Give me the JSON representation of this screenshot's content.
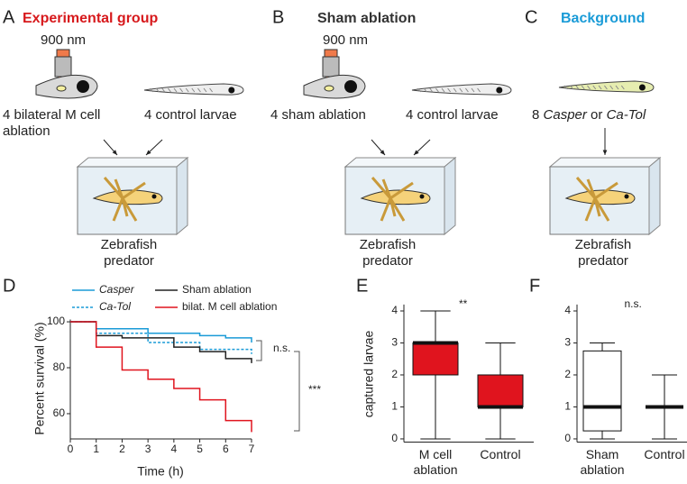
{
  "panels": {
    "A": {
      "label": "A",
      "title": "Experimental group",
      "wavelength": "900 nm",
      "group1": "4 bilateral M cell ablation",
      "group2": "4 control larvae",
      "tank": "Zebrafish predator"
    },
    "B": {
      "label": "B",
      "title": "Sham ablation",
      "wavelength": "900 nm",
      "group1": "4 sham ablation",
      "group2": "4 control larvae",
      "tank": "Zebrafish predator"
    },
    "C": {
      "label": "C",
      "title": "Background",
      "group_count": "8",
      "group_name1": "Casper",
      "group_or": "or",
      "group_name2": "Ca-Tol",
      "tank": "Zebrafish predator"
    }
  },
  "chart_data": [
    {
      "type": "step-line",
      "panel_label": "D",
      "ylabel": "Percent survival (%)",
      "xlabel": "Time (h)",
      "x": [
        0,
        1,
        2,
        3,
        4,
        5,
        6,
        7
      ],
      "series": [
        {
          "name": "Casper",
          "color": "#1a9bd7",
          "style": "solid",
          "values": [
            100,
            97,
            97,
            95,
            95,
            94,
            93,
            91
          ]
        },
        {
          "name": "Ca-Tol",
          "color": "#1a9bd7",
          "style": "dotted",
          "values": [
            100,
            95,
            95,
            91,
            91,
            88,
            88,
            86
          ]
        },
        {
          "name": "Sham ablation",
          "color": "#222222",
          "style": "solid",
          "values": [
            100,
            94,
            93,
            93,
            89,
            87,
            84,
            82
          ]
        },
        {
          "name": "bilat. M cell ablation",
          "color": "#e0141e",
          "style": "solid",
          "values": [
            100,
            89,
            79,
            75,
            71,
            66,
            57,
            52
          ]
        }
      ],
      "xlim": [
        0,
        7
      ],
      "xticks": [
        0,
        1,
        2,
        3,
        4,
        5,
        6,
        7
      ],
      "ylim": [
        49,
        101
      ],
      "yticks": [
        60,
        80,
        100
      ],
      "annotations": [
        "n.s.",
        "***"
      ]
    },
    {
      "type": "box",
      "panel_label": "E",
      "ylabel": "captured larvae",
      "categories": [
        "M cell ablation",
        "Control"
      ],
      "min": [
        0,
        0
      ],
      "q1": [
        2,
        1
      ],
      "median": [
        3,
        1
      ],
      "q3": [
        3,
        2
      ],
      "max": [
        4,
        3
      ],
      "color": "#e0141e",
      "ylim": [
        -0.1,
        4.2
      ],
      "yticks": [
        0,
        1,
        2,
        3,
        4
      ],
      "annotation": "**"
    },
    {
      "type": "box",
      "panel_label": "F",
      "categories": [
        "Sham ablation",
        "Control"
      ],
      "min": [
        0,
        0
      ],
      "q1": [
        0.25,
        1
      ],
      "median": [
        1,
        1
      ],
      "q3": [
        2.75,
        1
      ],
      "max": [
        3,
        2
      ],
      "color": "#ffffff",
      "ylim": [
        -0.1,
        4.2
      ],
      "yticks": [
        0,
        1,
        2,
        3,
        4
      ],
      "annotation": "n.s."
    }
  ]
}
